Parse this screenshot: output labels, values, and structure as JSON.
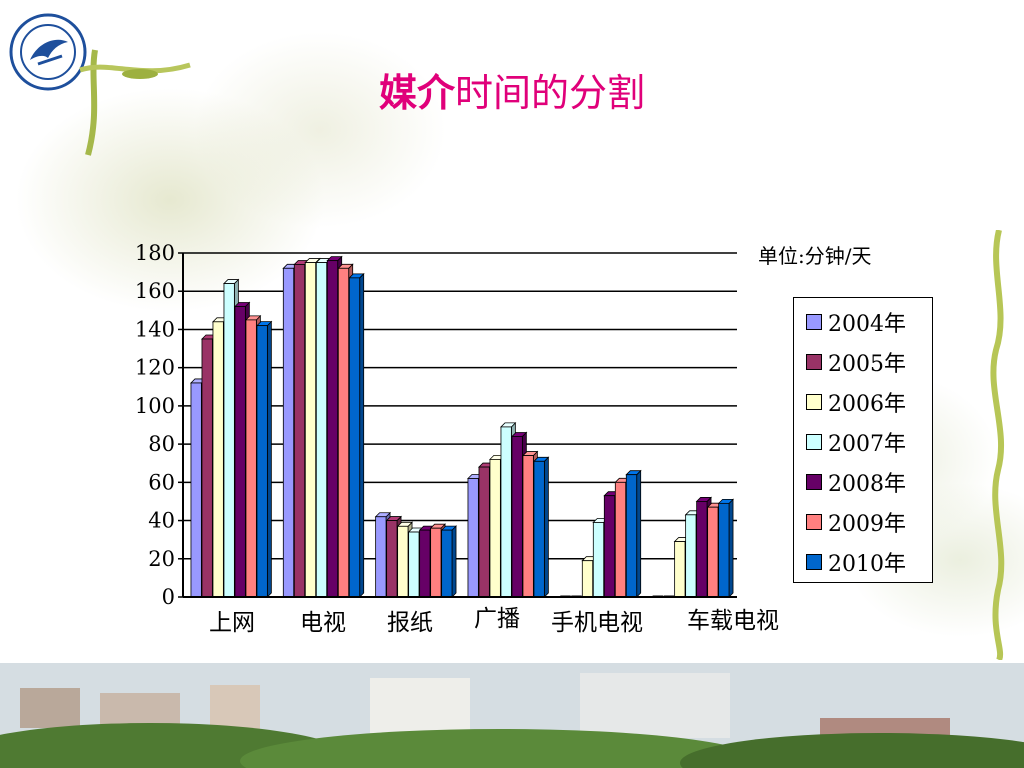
{
  "title": {
    "bold": "媒介",
    "rest": "时间的分割"
  },
  "unit_label": "单位:分钟/天",
  "colors": {
    "title": "#e0007a",
    "series": [
      "#9999ff",
      "#993366",
      "#ffffcc",
      "#ccffff",
      "#660066",
      "#ff8080",
      "#0066cc"
    ]
  },
  "logo": {
    "icon": "university-seal-icon"
  },
  "chart_data": {
    "type": "bar",
    "categories": [
      "上网",
      "电视",
      "报纸",
      "广播",
      "手机电视",
      "车载电视"
    ],
    "series": [
      {
        "name": "2004年",
        "values": [
          112,
          172,
          42,
          62,
          0,
          0
        ]
      },
      {
        "name": "2005年",
        "values": [
          135,
          174,
          40,
          68,
          0,
          0
        ]
      },
      {
        "name": "2006年",
        "values": [
          144,
          175,
          37,
          72,
          19,
          29
        ]
      },
      {
        "name": "2007年",
        "values": [
          164,
          175,
          34,
          89,
          39,
          43
        ]
      },
      {
        "name": "2008年",
        "values": [
          152,
          176,
          35,
          84,
          53,
          50
        ]
      },
      {
        "name": "2009年",
        "values": [
          145,
          172,
          36,
          74,
          60,
          47
        ]
      },
      {
        "name": "2010年",
        "values": [
          142,
          167,
          35,
          71,
          64,
          49
        ]
      }
    ],
    "ylim": [
      0,
      180
    ],
    "yticks": [
      0,
      20,
      40,
      60,
      80,
      100,
      120,
      140,
      160,
      180
    ],
    "grid": true,
    "legend_position": "right"
  }
}
